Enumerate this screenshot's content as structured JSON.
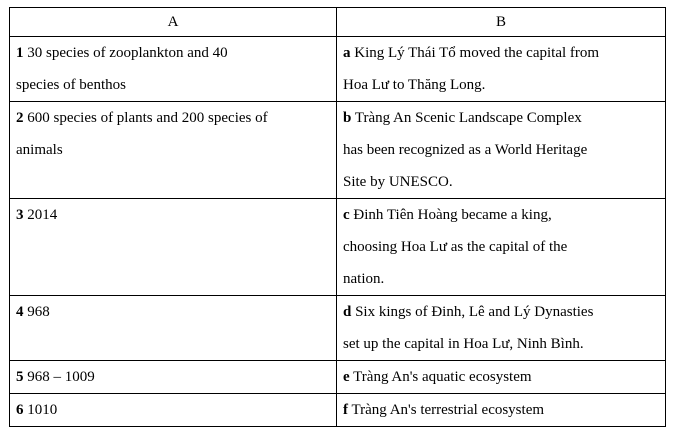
{
  "headers": [
    "A",
    "B"
  ],
  "rows": [
    {
      "a_num": "1",
      "a_text": "30 species of zooplankton and 40\nspecies of benthos",
      "b_letter": "a",
      "b_text": "King Lý Thái Tổ moved the capital from\nHoa Lư to Thăng Long."
    },
    {
      "a_num": "2",
      "a_text": "600 species of plants and 200 species of\nanimals",
      "b_letter": "b",
      "b_text": "Tràng An Scenic Landscape Complex\nhas been recognized as a World Heritage\nSite by UNESCO."
    },
    {
      "a_num": "3",
      "a_text": "2014",
      "b_letter": "c",
      "b_text": "Đinh Tiên Hoàng became a king,\nchoosing Hoa Lư as the capital of the\nnation."
    },
    {
      "a_num": "4",
      "a_text": "968",
      "b_letter": "d",
      "b_text": "Six kings of Đinh, Lê and Lý Dynasties\nset up the capital in Hoa Lư, Ninh Bình."
    },
    {
      "a_num": "5",
      "a_text": "968 – 1009",
      "b_letter": "e",
      "b_text": "Tràng An's aquatic ecosystem"
    },
    {
      "a_num": "6",
      "a_text": "1010",
      "b_letter": "f",
      "b_text": "Tràng An's terrestrial ecosystem"
    }
  ]
}
